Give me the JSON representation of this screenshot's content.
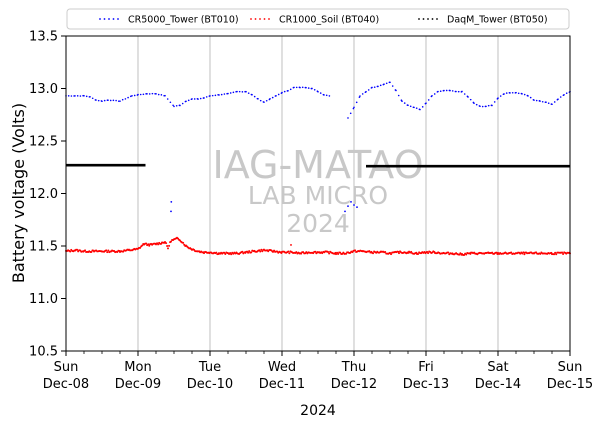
{
  "chart_data": {
    "type": "scatter",
    "title": "",
    "xlabel": "2024",
    "ylabel": "Battery voltage (Volts)",
    "xlim": [
      "2024-12-08 00:00",
      "2024-12-15 00:00"
    ],
    "ylim": [
      10.5,
      13.5
    ],
    "yticks": [
      "10.5",
      "11.0",
      "11.5",
      "12.0",
      "12.5",
      "13.0",
      "13.5"
    ],
    "xticks": [
      {
        "day": "Sun",
        "date": "Dec-08"
      },
      {
        "day": "Mon",
        "date": "Dec-09"
      },
      {
        "day": "Tue",
        "date": "Dec-10"
      },
      {
        "day": "Wed",
        "date": "Dec-11"
      },
      {
        "day": "Thu",
        "date": "Dec-12"
      },
      {
        "day": "Fri",
        "date": "Dec-13"
      },
      {
        "day": "Sat",
        "date": "Dec-14"
      },
      {
        "day": "Sun",
        "date": "Dec-15"
      }
    ],
    "grid": "vertical",
    "legend_position": "top",
    "series": [
      {
        "name": "CR5000_Tower (BT010)",
        "color": "#0000ff",
        "x_hours": [
          0,
          3,
          6,
          8,
          10,
          12,
          14,
          18,
          22,
          24,
          27,
          30,
          33,
          36,
          38,
          40,
          42,
          44,
          46,
          48,
          51,
          54,
          57,
          60,
          62,
          64,
          66,
          68,
          70,
          72,
          74,
          76,
          78,
          80,
          82,
          84,
          86,
          88,
          90,
          92,
          94,
          96,
          98,
          100,
          102,
          104,
          106,
          108,
          110,
          112,
          114,
          116,
          118,
          120,
          122,
          124,
          126,
          128,
          130,
          132,
          134,
          136,
          138,
          140,
          142,
          144,
          146,
          148,
          150,
          152,
          154,
          156,
          158,
          160,
          162,
          164,
          166,
          168
        ],
        "values": [
          12.93,
          12.93,
          12.93,
          12.92,
          12.89,
          12.88,
          12.89,
          12.88,
          12.93,
          12.94,
          12.95,
          12.95,
          12.93,
          12.83,
          12.84,
          12.88,
          12.9,
          12.9,
          12.91,
          12.93,
          12.94,
          12.95,
          12.97,
          12.97,
          12.94,
          12.9,
          12.87,
          12.9,
          12.93,
          12.96,
          12.98,
          13.01,
          13.01,
          13.01,
          13.0,
          12.97,
          12.94,
          12.93,
          null,
          null,
          12.72,
          12.82,
          12.93,
          12.97,
          13.01,
          13.02,
          13.04,
          13.06,
          12.98,
          12.88,
          12.84,
          12.82,
          12.8,
          12.86,
          12.93,
          12.97,
          12.98,
          12.98,
          12.97,
          12.97,
          12.92,
          12.86,
          12.83,
          12.83,
          12.84,
          12.91,
          12.95,
          12.96,
          12.96,
          12.95,
          12.93,
          12.89,
          12.88,
          12.87,
          12.85,
          12.9,
          12.94,
          12.97
        ]
      },
      {
        "name": "CR1000_Soil (BT040)",
        "color": "#ff0000",
        "x_hours": [
          0,
          3,
          6,
          9,
          12,
          15,
          18,
          21,
          24,
          26,
          28,
          30,
          32,
          33,
          34,
          35,
          36,
          37,
          38,
          40,
          42,
          44,
          46,
          48,
          51,
          54,
          57,
          60,
          63,
          66,
          69,
          72,
          75,
          78,
          81,
          84,
          87,
          90,
          93,
          96,
          99,
          102,
          105,
          108,
          111,
          114,
          117,
          120,
          123,
          126,
          129,
          132,
          135,
          138,
          141,
          144,
          147,
          150,
          153,
          156,
          159,
          162,
          165,
          168
        ],
        "values": [
          11.45,
          11.46,
          11.45,
          11.45,
          11.45,
          11.45,
          11.45,
          11.46,
          11.47,
          11.52,
          11.51,
          11.52,
          11.53,
          11.54,
          11.48,
          11.55,
          11.56,
          11.57,
          11.56,
          11.5,
          11.47,
          11.45,
          11.44,
          11.44,
          11.43,
          11.43,
          11.43,
          11.44,
          11.45,
          11.46,
          11.45,
          11.44,
          11.44,
          11.43,
          11.44,
          11.44,
          11.44,
          11.43,
          11.43,
          11.45,
          11.45,
          11.44,
          11.44,
          11.43,
          11.44,
          11.44,
          11.43,
          11.44,
          11.44,
          11.43,
          11.43,
          11.42,
          11.43,
          11.43,
          11.43,
          11.43,
          11.43,
          11.43,
          11.43,
          11.43,
          11.43,
          11.43,
          11.43,
          11.43
        ]
      },
      {
        "name": "DaqM_Tower (BT050)",
        "color": "#000000",
        "segments": [
          {
            "x_hours": [
              0,
              26.5
            ],
            "values": [
              12.27,
              12.27
            ]
          },
          {
            "x_hours": [
              100,
              168
            ],
            "values": [
              12.26,
              12.26
            ]
          }
        ]
      }
    ],
    "outliers": [
      {
        "series": "CR5000_Tower (BT010)",
        "x_hours": [
          35,
          35.1
        ],
        "values": [
          11.83,
          11.92
        ]
      },
      {
        "series": "CR5000_Tower (BT010)",
        "x_hours": [
          93,
          94,
          95,
          96,
          97
        ],
        "values": [
          11.83,
          11.88,
          11.92,
          11.89,
          11.87
        ]
      },
      {
        "series": "CR1000_Soil (BT040)",
        "x_hours": [
          75
        ],
        "values": [
          11.51
        ]
      }
    ]
  },
  "watermark": {
    "line1": "IAG-MATAO",
    "line2": "LAB MICRO",
    "line3": "2024"
  }
}
